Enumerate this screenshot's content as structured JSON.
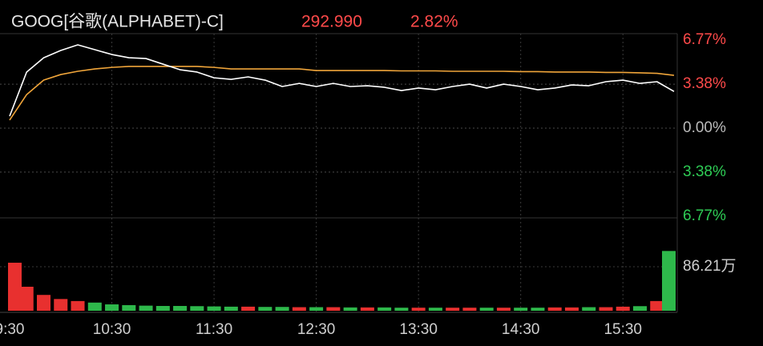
{
  "header": {
    "symbol": "GOOG[谷歌(ALPHABET)-C]",
    "price": "292.990",
    "change": "2.82%"
  },
  "chart_data": [
    {
      "type": "line",
      "x": [
        0,
        10,
        20,
        30,
        40,
        50,
        60,
        70,
        80,
        90,
        100,
        110,
        120,
        130,
        140,
        150,
        160,
        170,
        180,
        190,
        200,
        210,
        220,
        230,
        240,
        250,
        260,
        270,
        280,
        290,
        300,
        310,
        320,
        330,
        340,
        350,
        360,
        370,
        380,
        390
      ],
      "xlim": [
        0,
        390
      ],
      "xticks": [
        {
          "value": 0,
          "label": "9:30"
        },
        {
          "value": 60,
          "label": "10:30"
        },
        {
          "value": 120,
          "label": "11:30"
        },
        {
          "value": 180,
          "label": "12:30"
        },
        {
          "value": 240,
          "label": "13:30"
        },
        {
          "value": 300,
          "label": "14:30"
        },
        {
          "value": 360,
          "label": "15:30"
        }
      ],
      "ylim": [
        -6.77,
        6.77
      ],
      "yticks": [
        {
          "value": 6.77,
          "label": "6.77%"
        },
        {
          "value": 3.38,
          "label": "3.38%"
        },
        {
          "value": 0,
          "label": "0.00%"
        },
        {
          "value": -3.38,
          "label": "3.38%"
        },
        {
          "value": -6.77,
          "label": "6.77%"
        }
      ],
      "series": [
        {
          "color": "#ffffff",
          "values": [
            0.92,
            4.31,
            5.41,
            5.97,
            6.4,
            6.03,
            5.66,
            5.41,
            5.35,
            4.92,
            4.49,
            4.31,
            3.87,
            3.75,
            3.94,
            3.69,
            3.2,
            3.44,
            3.2,
            3.44,
            3.2,
            3.26,
            3.14,
            2.89,
            3.08,
            2.95,
            3.2,
            3.38,
            3.08,
            3.38,
            3.2,
            2.95,
            3.08,
            3.32,
            3.26,
            3.57,
            3.69,
            3.44,
            3.57,
            2.82
          ]
        },
        {
          "color": "#f0a53a",
          "values": [
            0.62,
            2.58,
            3.69,
            4.12,
            4.37,
            4.55,
            4.67,
            4.74,
            4.74,
            4.74,
            4.74,
            4.74,
            4.67,
            4.55,
            4.55,
            4.55,
            4.55,
            4.55,
            4.43,
            4.43,
            4.43,
            4.43,
            4.43,
            4.4,
            4.4,
            4.4,
            4.37,
            4.37,
            4.37,
            4.37,
            4.34,
            4.34,
            4.31,
            4.31,
            4.31,
            4.28,
            4.28,
            4.25,
            4.21,
            4.06
          ]
        }
      ]
    },
    {
      "type": "bar",
      "values": [
        94,
        47,
        31,
        23,
        19,
        16,
        12.5,
        11,
        10,
        9.4,
        9.4,
        9,
        8.5,
        8,
        8,
        7.5,
        7.5,
        7,
        7,
        7,
        6.5,
        6.5,
        6.5,
        6,
        6,
        6,
        6,
        6,
        6,
        6,
        6,
        6,
        6.5,
        6.5,
        7,
        7,
        8,
        9,
        19,
        117
      ],
      "ylim": [
        0,
        172.42
      ],
      "yticks": [
        {
          "value": 86.21,
          "label": "86.21万"
        }
      ],
      "colors": [
        "#e8302f",
        "#2eb84b"
      ]
    }
  ]
}
